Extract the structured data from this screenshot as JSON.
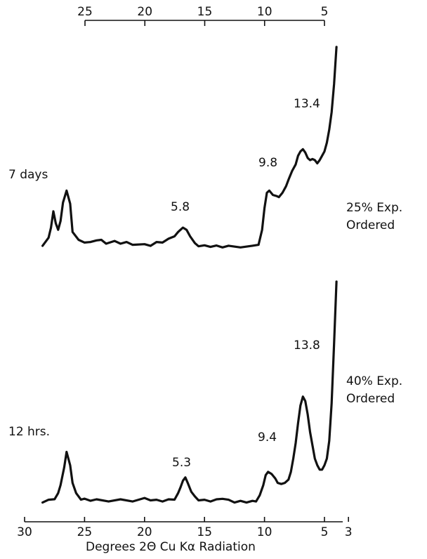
{
  "chart_data": {
    "type": "line",
    "xlabel": "Degrees 2Θ Cu Kα Radiation",
    "xlim": [
      30,
      3
    ],
    "bottom_ticks": [
      "30",
      "25",
      "20",
      "15",
      "10",
      "5",
      "3"
    ],
    "top_ticks": [
      "25",
      "20",
      "15",
      "10",
      "5"
    ],
    "ylabel": "",
    "grid": false,
    "series": [
      {
        "label": "7 days",
        "sample_label": [
          "25% Exp.",
          "Ordered"
        ],
        "peak_labels": [
          "13.4",
          "9.8",
          "5.8"
        ],
        "x": [
          28.5,
          28.0,
          27.8,
          27.6,
          27.4,
          27.2,
          27.0,
          26.8,
          26.5,
          26.2,
          26.0,
          25.5,
          25.0,
          24.5,
          24.0,
          23.6,
          23.2,
          22.5,
          22.0,
          21.5,
          21.0,
          20.0,
          19.5,
          19.0,
          18.5,
          18.0,
          17.5,
          17.2,
          16.8,
          16.5,
          16.2,
          15.8,
          15.5,
          15.0,
          14.5,
          14.0,
          13.5,
          13.0,
          12.0,
          11.0,
          10.5,
          10.2,
          10.0,
          9.8,
          9.6,
          9.3,
          9.0,
          8.8,
          8.5,
          8.2,
          8.0,
          7.7,
          7.4,
          7.2,
          7.0,
          6.8,
          6.6,
          6.4,
          6.2,
          6.0,
          5.8,
          5.6,
          5.4,
          5.2,
          5.0,
          4.8,
          4.6,
          4.4,
          4.2,
          4.0
        ],
        "y": [
          1.0,
          4.0,
          9.0,
          16.5,
          11.0,
          8.0,
          12.0,
          20.5,
          26.0,
          20.0,
          7.0,
          3.0,
          2.5,
          2.0,
          3.5,
          3.0,
          2.0,
          2.5,
          2.0,
          2.0,
          1.5,
          1.0,
          1.0,
          2.0,
          2.5,
          3.5,
          5.0,
          7.0,
          9.0,
          8.0,
          5.0,
          1.5,
          0.8,
          0.5,
          0.5,
          0.4,
          0.3,
          0.3,
          0.3,
          0.3,
          1.5,
          8.0,
          18.0,
          25.0,
          26.0,
          24.0,
          23.5,
          23.0,
          25.0,
          28.0,
          31.0,
          35.0,
          38.0,
          42.0,
          44.0,
          45.0,
          43.5,
          41.0,
          40.0,
          40.5,
          40.0,
          38.5,
          40.0,
          42.0,
          44.0,
          48.0,
          54.0,
          62.0,
          75.0,
          92.0
        ]
      },
      {
        "label": "12 hrs.",
        "sample_label": [
          "40% Exp.",
          "Ordered"
        ],
        "peak_labels": [
          "13.8",
          "9.4",
          "5.3"
        ],
        "x": [
          28.5,
          28.0,
          27.5,
          27.2,
          27.0,
          26.7,
          26.5,
          26.2,
          26.0,
          25.7,
          25.3,
          25.0,
          24.5,
          24.0,
          23.0,
          22.0,
          21.0,
          20.0,
          19.5,
          19.0,
          18.5,
          18.0,
          17.5,
          17.2,
          17.0,
          16.8,
          16.6,
          16.4,
          16.1,
          15.8,
          15.5,
          15.0,
          14.5,
          14.0,
          13.5,
          13.0,
          12.5,
          12.0,
          11.5,
          11.0,
          10.7,
          10.4,
          10.1,
          9.9,
          9.7,
          9.4,
          9.1,
          8.9,
          8.6,
          8.3,
          8.0,
          7.8,
          7.6,
          7.4,
          7.2,
          7.0,
          6.8,
          6.6,
          6.4,
          6.2,
          6.0,
          5.8,
          5.6,
          5.4,
          5.2,
          5.0,
          4.8,
          4.6,
          4.4,
          4.2,
          4.0
        ],
        "y": [
          0.5,
          1.0,
          2.0,
          4.0,
          8.0,
          16.0,
          23.0,
          17.0,
          9.0,
          4.0,
          1.8,
          1.5,
          1.3,
          1.2,
          1.0,
          1.2,
          1.0,
          1.8,
          1.5,
          1.0,
          1.0,
          1.2,
          1.8,
          4.0,
          7.0,
          10.0,
          11.5,
          9.0,
          5.0,
          2.5,
          1.5,
          1.0,
          1.0,
          1.2,
          2.2,
          1.0,
          0.5,
          0.5,
          0.5,
          0.5,
          1.0,
          3.0,
          8.0,
          12.5,
          14.0,
          13.0,
          11.0,
          9.0,
          8.5,
          9.0,
          10.5,
          14.0,
          20.0,
          27.0,
          36.0,
          44.0,
          48.0,
          46.0,
          40.0,
          32.0,
          26.0,
          20.0,
          17.0,
          15.0,
          15.0,
          17.0,
          20.0,
          28.0,
          45.0,
          72.0,
          100.0
        ]
      }
    ]
  }
}
